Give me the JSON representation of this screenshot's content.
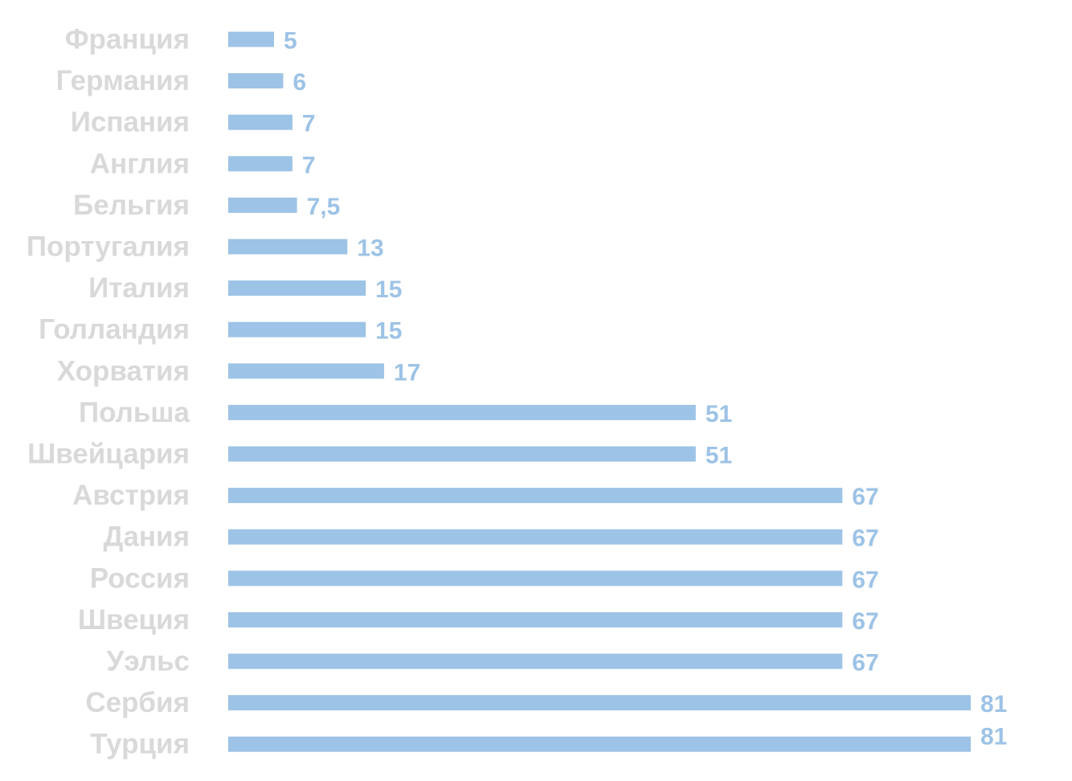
{
  "chart_data": {
    "type": "bar",
    "orientation": "horizontal",
    "categories": [
      "Франция",
      "Германия",
      "Испания",
      "Англия",
      "Бельгия",
      "Португалия",
      "Италия",
      "Голландия",
      "Хорватия",
      "Польша",
      "Швейцария",
      "Австрия",
      "Дания",
      "Россия",
      "Швеция",
      "Уэльс",
      "Сербия",
      "Турция"
    ],
    "values": [
      5,
      6,
      7,
      7,
      7.5,
      13,
      15,
      15,
      17,
      51,
      51,
      67,
      67,
      67,
      67,
      67,
      81,
      81
    ],
    "value_labels": [
      "5",
      "6",
      "7",
      "7",
      "7,5",
      "13",
      "15",
      "15",
      "17",
      "51",
      "51",
      "67",
      "67",
      "67",
      "67",
      "67",
      "81",
      "81"
    ],
    "xlim": [
      0,
      81
    ],
    "grid": false,
    "colors": {
      "bar": "#9dc3e6",
      "value_label": "#9dc3e6",
      "category_label": "#d9d9d9"
    }
  }
}
